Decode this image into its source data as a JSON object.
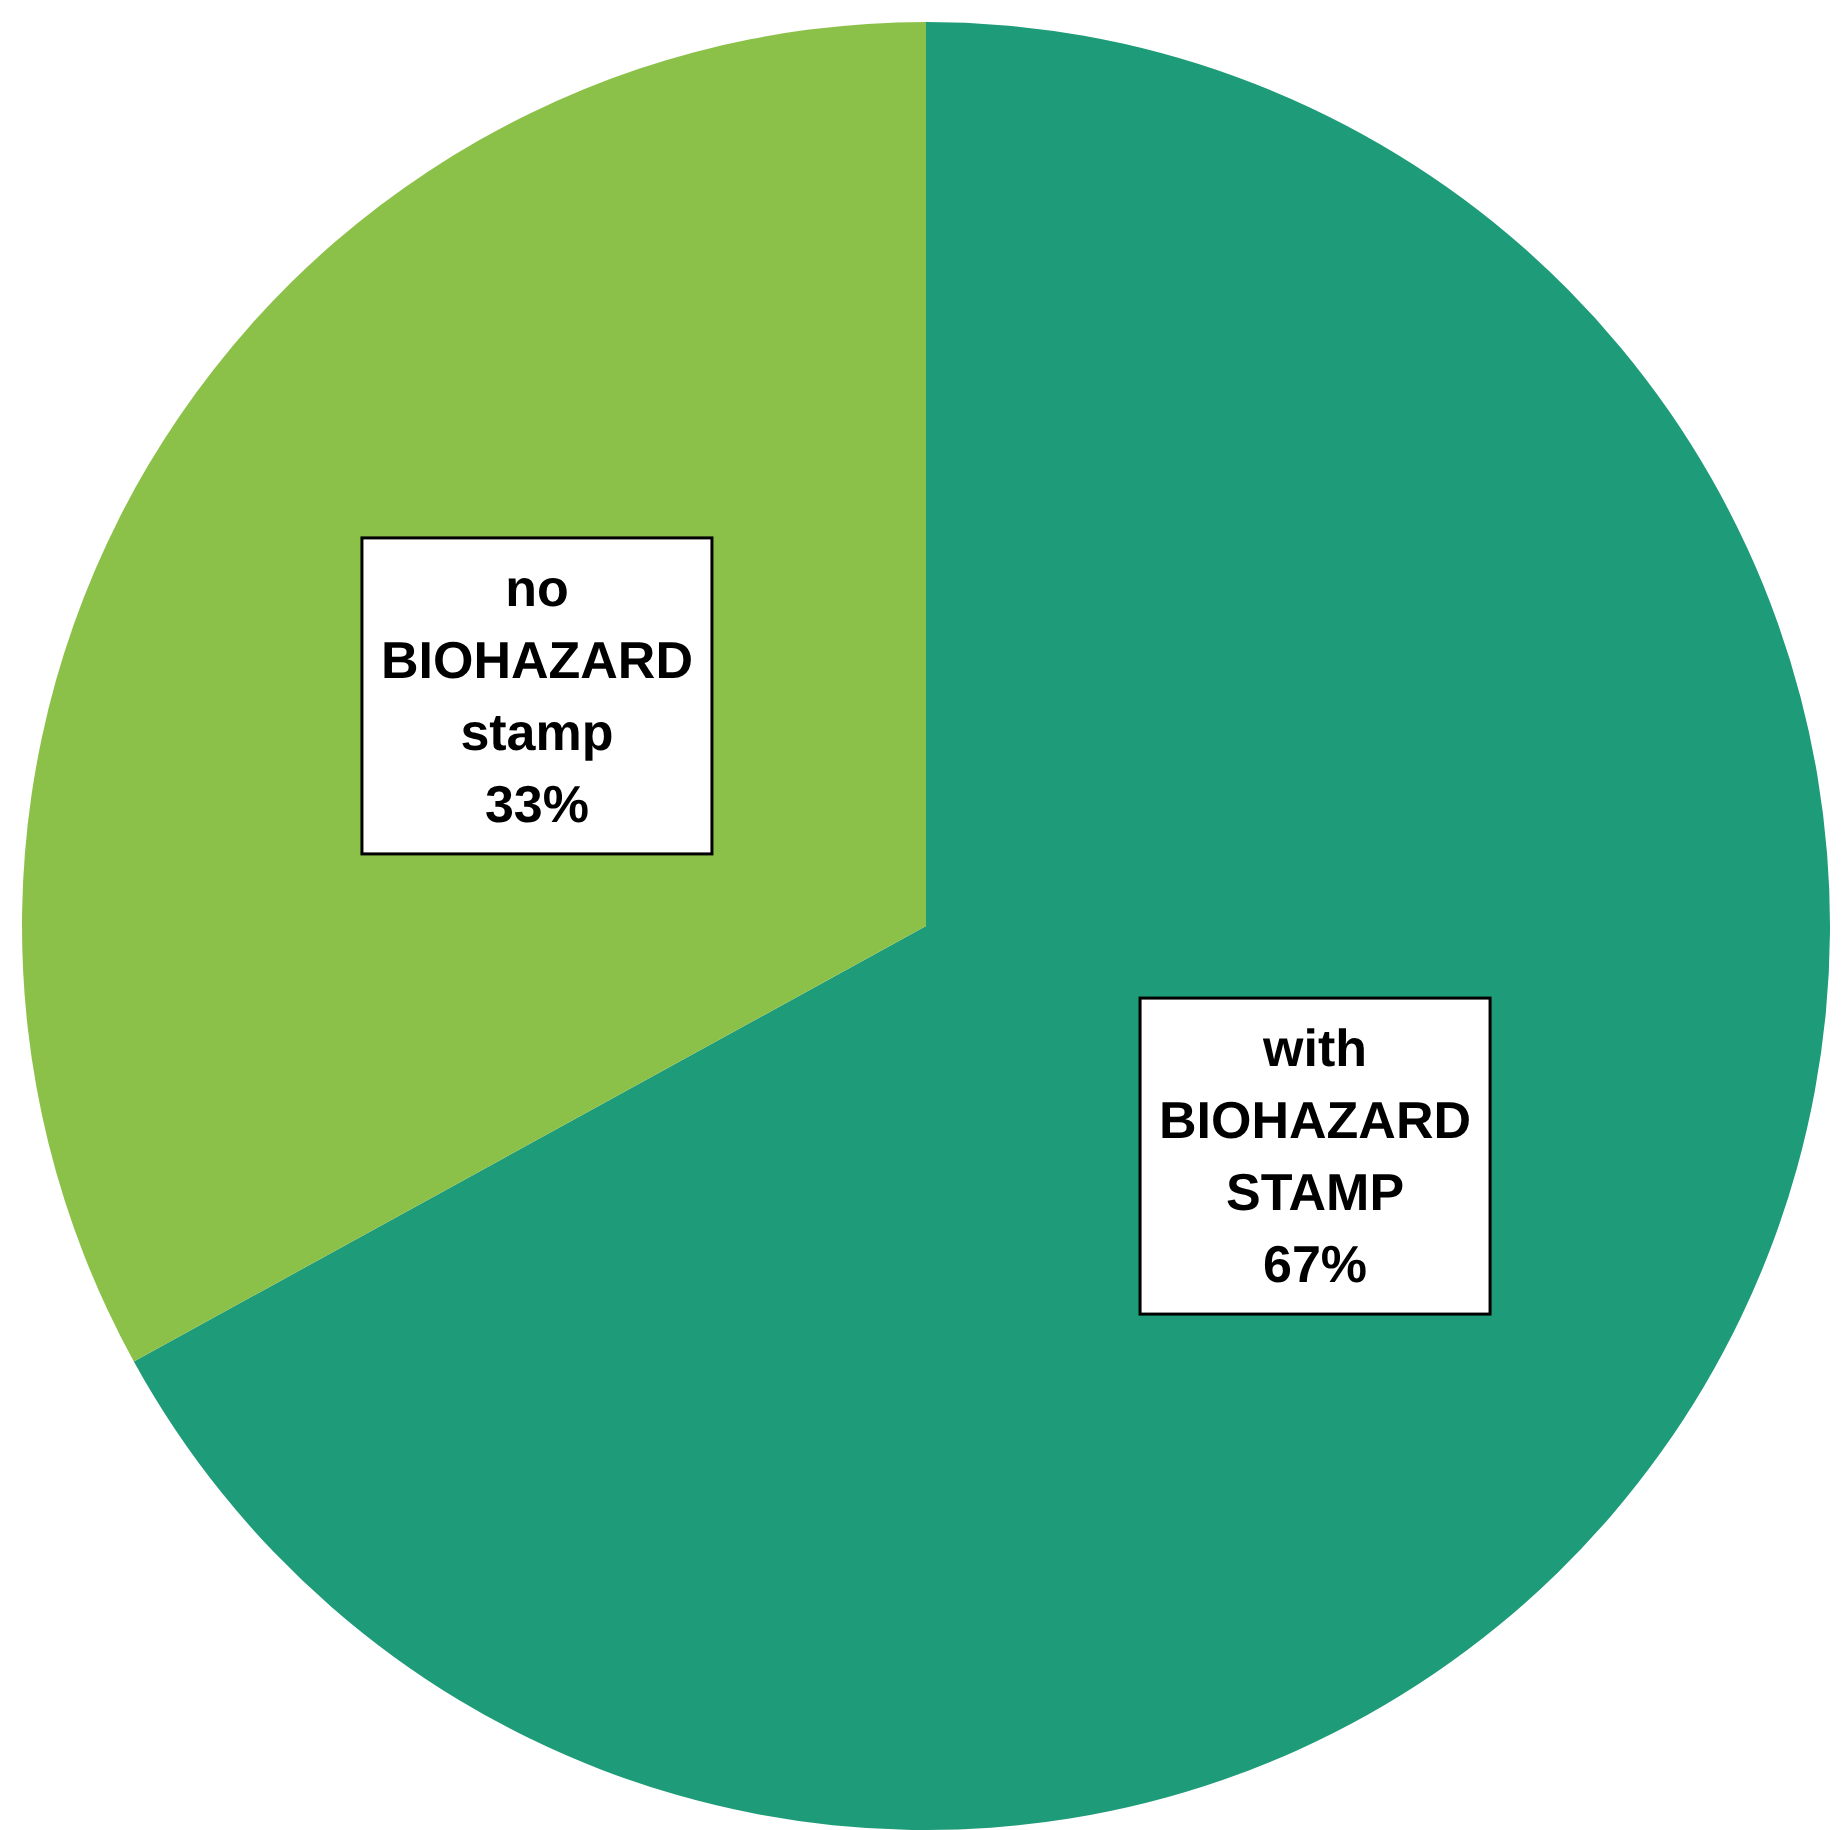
{
  "chart_data": {
    "type": "pie",
    "categories": [
      "with BIOHAZARD STAMP",
      "no BIOHAZARD stamp"
    ],
    "values": [
      67,
      33
    ],
    "colors": [
      "#1e9b78",
      "#8bc148"
    ],
    "value_labels": [
      "67%",
      "33%"
    ]
  }
}
